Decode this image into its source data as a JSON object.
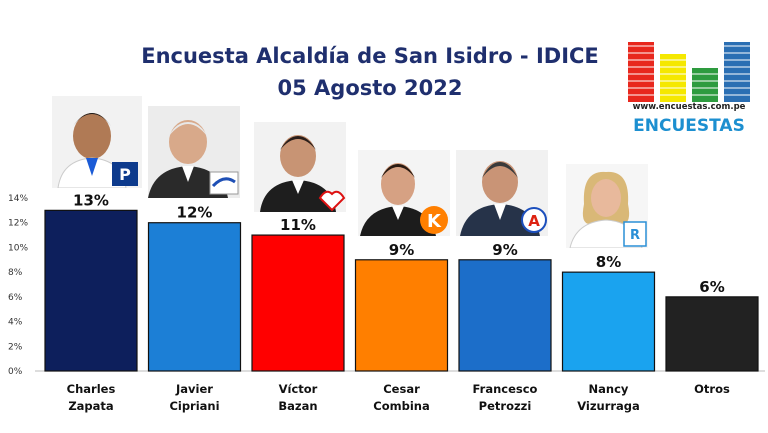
{
  "title": {
    "line1": "Encuesta Alcaldía de San Isidro - IDICE",
    "line2": "05 Agosto 2022"
  },
  "logo": {
    "url_text": "www.encuestas.com.pe",
    "brand": "ENCUESTAS",
    "bar_colors": [
      "#e8271d",
      "#f5e800",
      "#2e9b3f",
      "#2b6fb3"
    ]
  },
  "party_logos": {
    "zapata": "P",
    "combina": "K",
    "petrozzi": "A",
    "vizurraga": "R"
  },
  "chart_data": {
    "type": "bar",
    "title": "",
    "xlabel": "",
    "ylabel": "",
    "ylim": [
      0,
      14
    ],
    "yticks": [
      "0%",
      "2%",
      "4%",
      "6%",
      "8%",
      "10%",
      "12%",
      "14%"
    ],
    "grid": false,
    "categories": [
      [
        "Charles",
        "Zapata"
      ],
      [
        "Javier",
        "Cipriani"
      ],
      [
        "Víctor",
        "Bazan"
      ],
      [
        "Cesar",
        "Combina"
      ],
      [
        "Francesco",
        "Petrozzi"
      ],
      [
        "Nancy",
        "Vizurraga"
      ],
      [
        "Otros"
      ]
    ],
    "values": [
      13,
      12,
      11,
      9,
      9,
      8,
      6
    ],
    "labels": [
      "13%",
      "12%",
      "11%",
      "9%",
      "9%",
      "8%",
      "6%"
    ],
    "colors": [
      "#0d1f5c",
      "#1c7fd6",
      "#ff0000",
      "#ff7f00",
      "#1c6ec9",
      "#1aa3ef",
      "#222222"
    ]
  }
}
